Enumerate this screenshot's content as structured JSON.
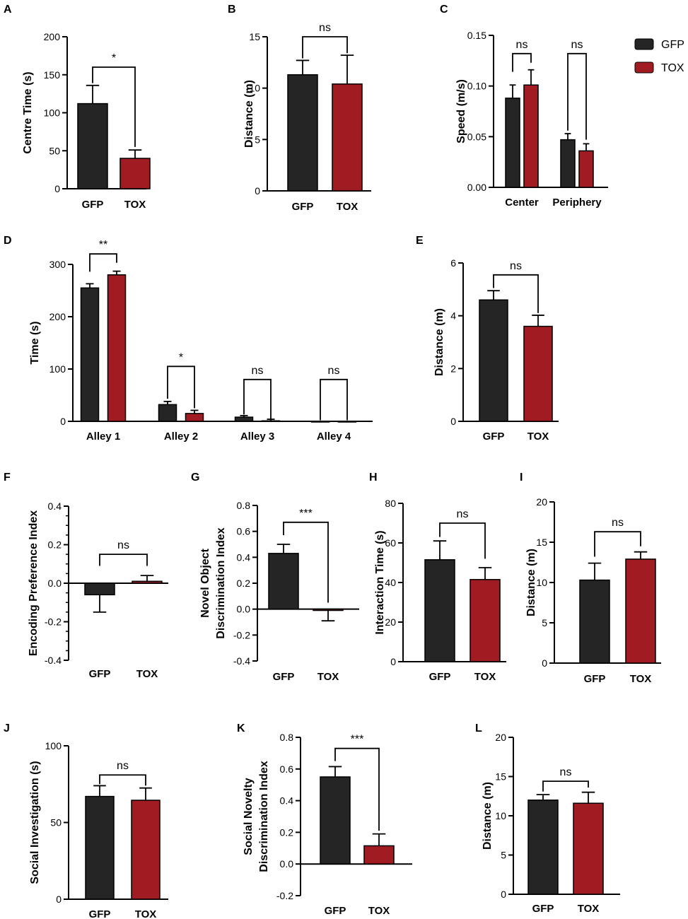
{
  "figure": {
    "title": ""
  },
  "legend": {
    "entries": [
      {
        "name": "GFP",
        "color": "#252525"
      },
      {
        "name": "TOX",
        "color": "#a01c22"
      }
    ]
  },
  "colors": {
    "gfp": "#252525",
    "tox": "#a01c22",
    "axis": "#000000"
  },
  "chart_data": [
    {
      "id": "A",
      "type": "bar",
      "panel_label": "A",
      "ylabel": "Centre Time (s)",
      "ylim": [
        0,
        200
      ],
      "yticks": [
        0,
        50,
        100,
        150,
        200
      ],
      "ytick_labels": [
        "0",
        "50",
        "100",
        "150",
        "200"
      ],
      "categories": [
        "GFP",
        "TOX"
      ],
      "values": [
        112,
        40
      ],
      "errors": [
        24,
        11
      ],
      "sig": [
        {
          "from": 0,
          "to": 1,
          "label": "*",
          "bracket_y": 160,
          "left_end": 139,
          "right_end": 55
        }
      ]
    },
    {
      "id": "B",
      "type": "bar",
      "panel_label": "B",
      "ylabel": "Distance (m)",
      "ylim": [
        0,
        15
      ],
      "yticks": [
        0,
        5,
        10,
        15
      ],
      "ytick_labels": [
        "0",
        "5",
        "10",
        "15"
      ],
      "categories": [
        "GFP",
        "TOX"
      ],
      "values": [
        11.3,
        10.4
      ],
      "errors": [
        1.4,
        2.8
      ],
      "sig": [
        {
          "from": 0,
          "to": 1,
          "label": "ns",
          "bracket_y": 15,
          "left_end": 12.9,
          "right_end": 13.4
        }
      ]
    },
    {
      "id": "C",
      "type": "grouped_bar",
      "panel_label": "C",
      "ylabel": "Speed (m/s)",
      "ylim": [
        0,
        0.15
      ],
      "yticks": [
        0,
        0.05,
        0.1,
        0.15
      ],
      "ytick_labels": [
        "0.00",
        "0.05",
        "0.10",
        "0.15"
      ],
      "categories": [
        "Center",
        "Periphery"
      ],
      "series": [
        {
          "name": "GFP",
          "values": [
            0.088,
            0.047
          ],
          "errors": [
            0.013,
            0.006
          ]
        },
        {
          "name": "TOX",
          "values": [
            0.101,
            0.036
          ],
          "errors": [
            0.015,
            0.007
          ]
        }
      ],
      "sig": [
        {
          "group": 0,
          "label": "ns",
          "bracket_y": 0.132,
          "left_end": 0.114,
          "right_end": 0.123
        },
        {
          "group": 1,
          "label": "ns",
          "bracket_y": 0.132,
          "left_end": 0.056,
          "right_end": 0.047
        }
      ]
    },
    {
      "id": "D",
      "type": "grouped_bar",
      "panel_label": "D",
      "ylabel": "Time (s)",
      "ylim": [
        0,
        300
      ],
      "yticks": [
        0,
        100,
        200,
        300
      ],
      "ytick_labels": [
        "0",
        "100",
        "200",
        "300"
      ],
      "categories": [
        "Alley 1",
        "Alley 2",
        "Alley 3",
        "Alley 4"
      ],
      "series": [
        {
          "name": "GFP",
          "values": [
            255,
            32,
            8,
            0
          ],
          "errors": [
            8,
            6,
            3,
            0
          ]
        },
        {
          "name": "TOX",
          "values": [
            280,
            15,
            1,
            0
          ],
          "errors": [
            7,
            6,
            3,
            0
          ]
        }
      ],
      "sig": [
        {
          "group": 0,
          "label": "**",
          "bracket_y": 320,
          "left_end": 286,
          "right_end": 303
        },
        {
          "group": 1,
          "label": "*",
          "bracket_y": 105,
          "left_end": 43,
          "right_end": 25
        },
        {
          "group": 2,
          "label": "ns",
          "bracket_y": 80,
          "left_end": 13,
          "right_end": 4
        },
        {
          "group": 3,
          "label": "ns",
          "bracket_y": 80,
          "left_end": 2,
          "right_end": 2
        }
      ]
    },
    {
      "id": "E",
      "type": "bar",
      "panel_label": "E",
      "ylabel": "Distance (m)",
      "ylim": [
        0,
        6
      ],
      "yticks": [
        0,
        2,
        4,
        6
      ],
      "ytick_labels": [
        "0",
        "2",
        "4",
        "6"
      ],
      "categories": [
        "GFP",
        "TOX"
      ],
      "values": [
        4.6,
        3.6
      ],
      "errors": [
        0.35,
        0.42
      ],
      "sig": [
        {
          "from": 0,
          "to": 1,
          "label": "ns",
          "bracket_y": 5.55,
          "left_end": 5.05,
          "right_end": 4.1
        }
      ]
    },
    {
      "id": "F",
      "type": "bar",
      "panel_label": "F",
      "ylabel": "Encoding Preference Index",
      "ylim": [
        -0.4,
        0.4
      ],
      "yticks": [
        -0.4,
        -0.2,
        0,
        0.2,
        0.4
      ],
      "ytick_labels": [
        "-0.4",
        "-0.2",
        "0.0",
        "0.2",
        "0.4"
      ],
      "minor_ticks": true,
      "categories": [
        "GFP",
        "TOX"
      ],
      "values": [
        -0.06,
        0.01
      ],
      "errors": [
        0.09,
        0.03
      ],
      "sig": [
        {
          "from": 0,
          "to": 1,
          "label": "ns",
          "bracket_y": 0.15,
          "left_end": 0.09,
          "right_end": 0.09
        }
      ]
    },
    {
      "id": "G",
      "type": "bar",
      "panel_label": "G",
      "ylabel": "Novel Object\nDiscrimination Index",
      "ylim": [
        -0.4,
        0.8
      ],
      "yticks": [
        -0.4,
        -0.2,
        0,
        0.2,
        0.4,
        0.6,
        0.8
      ],
      "ytick_labels": [
        "-0.4",
        "-0.2",
        "0.0",
        "0.2",
        "0.4",
        "0.6",
        "0.8"
      ],
      "categories": [
        "GFP",
        "TOX"
      ],
      "values": [
        0.43,
        -0.01
      ],
      "errors": [
        0.07,
        0.08
      ],
      "sig": [
        {
          "from": 0,
          "to": 1,
          "label": "***",
          "bracket_y": 0.67,
          "left_end": 0.57,
          "right_end": 0.05
        }
      ]
    },
    {
      "id": "H",
      "type": "bar",
      "panel_label": "H",
      "ylabel": "Interaction Time (s)",
      "ylim": [
        0,
        80
      ],
      "yticks": [
        0,
        20,
        40,
        60,
        80
      ],
      "ytick_labels": [
        "0",
        "20",
        "40",
        "60",
        "80"
      ],
      "categories": [
        "GFP",
        "TOX"
      ],
      "values": [
        51.5,
        41.5
      ],
      "errors": [
        9.5,
        6
      ],
      "sig": [
        {
          "from": 0,
          "to": 1,
          "label": "ns",
          "bracket_y": 70,
          "left_end": 63,
          "right_end": 52
        }
      ]
    },
    {
      "id": "I",
      "type": "bar",
      "panel_label": "I",
      "ylabel": "Distance (m)",
      "ylim": [
        0,
        20
      ],
      "yticks": [
        0,
        5,
        10,
        15,
        20
      ],
      "ytick_labels": [
        "0",
        "5",
        "10",
        "15",
        "20"
      ],
      "categories": [
        "GFP",
        "TOX"
      ],
      "values": [
        10.3,
        12.9
      ],
      "errors": [
        2.1,
        0.9
      ],
      "sig": [
        {
          "from": 0,
          "to": 1,
          "label": "ns",
          "bracket_y": 16.3,
          "left_end": 13.2,
          "right_end": 14.5
        }
      ]
    },
    {
      "id": "J",
      "type": "bar",
      "panel_label": "J",
      "ylabel": "Social Investigation (s)",
      "ylim": [
        0,
        100
      ],
      "yticks": [
        0,
        50,
        100
      ],
      "ytick_labels": [
        "0",
        "50",
        "100"
      ],
      "categories": [
        "GFP",
        "TOX"
      ],
      "values": [
        67,
        64.5
      ],
      "errors": [
        7,
        8
      ],
      "sig": [
        {
          "from": 0,
          "to": 1,
          "label": "ns",
          "bracket_y": 81,
          "left_end": 75,
          "right_end": 74
        }
      ]
    },
    {
      "id": "K",
      "type": "bar",
      "panel_label": "K",
      "ylabel": "Social Novelty\nDiscrimination Index",
      "ylim": [
        -0.2,
        0.8
      ],
      "yticks": [
        -0.2,
        0,
        0.2,
        0.4,
        0.6,
        0.8
      ],
      "ytick_labels": [
        "-0.2",
        "0.0",
        "0.2",
        "0.4",
        "0.6",
        "0.8"
      ],
      "categories": [
        "GFP",
        "TOX"
      ],
      "values": [
        0.55,
        0.115
      ],
      "errors": [
        0.065,
        0.075
      ],
      "sig": [
        {
          "from": 0,
          "to": 1,
          "label": "***",
          "bracket_y": 0.73,
          "left_end": 0.65,
          "right_end": 0.21
        }
      ]
    },
    {
      "id": "L",
      "type": "bar",
      "panel_label": "L",
      "ylabel": "Distance (m)",
      "ylim": [
        0,
        20
      ],
      "yticks": [
        0,
        5,
        10,
        15,
        20
      ],
      "ytick_labels": [
        "0",
        "5",
        "10",
        "15",
        "20"
      ],
      "categories": [
        "GFP",
        "TOX"
      ],
      "values": [
        12,
        11.6
      ],
      "errors": [
        0.7,
        1.4
      ],
      "sig": [
        {
          "from": 0,
          "to": 1,
          "label": "ns",
          "bracket_y": 14.4,
          "left_end": 13.1,
          "right_end": 13.6
        }
      ]
    }
  ]
}
